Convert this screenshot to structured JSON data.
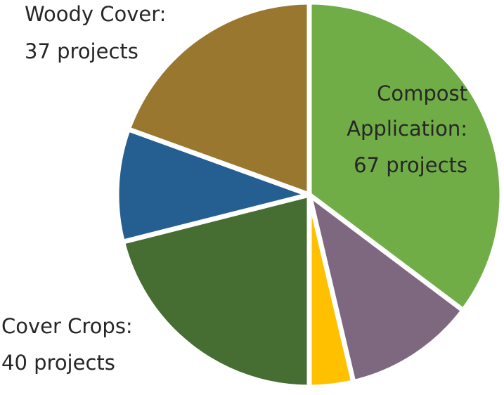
{
  "chart_data": {
    "type": "pie",
    "categories": [
      "Compost Application:",
      null,
      null,
      "Cover Crops:",
      null,
      "Woody Cover:"
    ],
    "values": [
      67,
      21,
      7,
      40,
      18,
      37
    ],
    "value_labels": [
      "67 projects",
      null,
      null,
      "40 projects",
      null,
      "37 projects"
    ],
    "colors": [
      "#70ad47",
      "#7e6880",
      "#ffc000",
      "#466d32",
      "#255e91",
      "#9a772f"
    ]
  }
}
